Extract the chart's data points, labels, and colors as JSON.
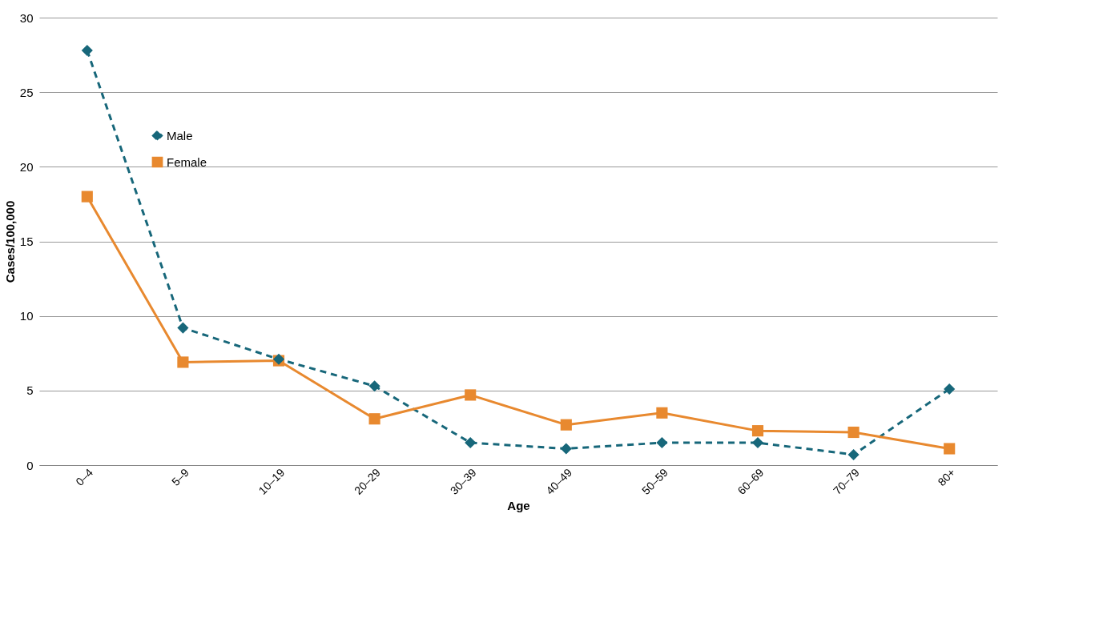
{
  "chart_data": {
    "type": "line",
    "xlabel": "Age",
    "ylabel": "Cases/100,000",
    "categories": [
      "0–4",
      "5–9",
      "10–19",
      "20–29",
      "30–39",
      "40–49",
      "50–59",
      "60–69",
      "70–79",
      "80+"
    ],
    "series": [
      {
        "name": "Male",
        "color": "#17677a",
        "marker": "diamond",
        "line_style": "dashed",
        "values": [
          27.8,
          9.2,
          7.1,
          5.3,
          1.5,
          1.1,
          1.5,
          1.5,
          0.7,
          5.1
        ]
      },
      {
        "name": "Female",
        "color": "#e8892f",
        "marker": "square",
        "line_style": "solid",
        "values": [
          18.0,
          6.9,
          7.0,
          3.1,
          4.7,
          2.7,
          3.5,
          2.3,
          2.2,
          1.1
        ]
      }
    ],
    "ylim": [
      0,
      30
    ],
    "yticks": [
      0,
      5,
      10,
      15,
      20,
      25,
      30
    ],
    "grid": "y",
    "legend": "top left"
  }
}
